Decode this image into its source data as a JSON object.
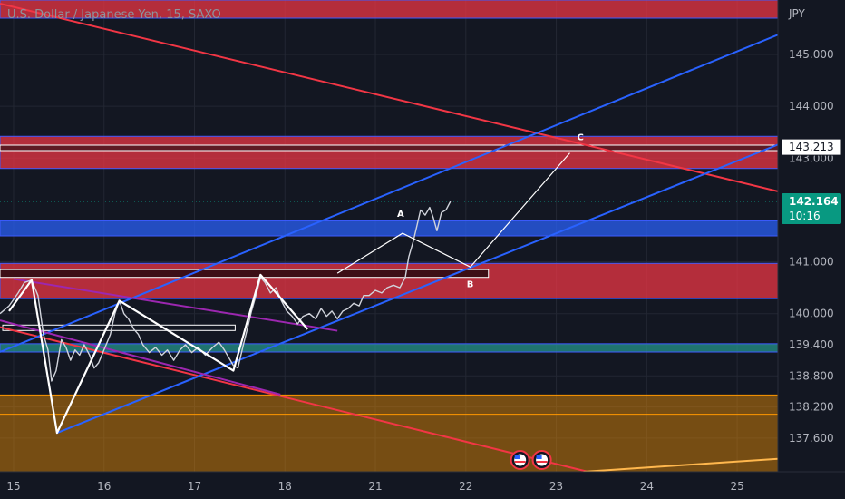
{
  "header": {
    "symbol": "U.S. Dollar / Japanese Yen",
    "interval": "15",
    "exchange": "SAXO",
    "currency": "JPY"
  },
  "chart_data": {
    "type": "line",
    "title": "U.S. Dollar / Japanese Yen, 15, SAXO",
    "x_ticks": [
      "15",
      "16",
      "17",
      "18",
      "21",
      "22",
      "23",
      "24",
      "25"
    ],
    "x_tick_index": [
      0,
      1,
      2,
      3,
      4,
      5,
      6,
      7,
      8
    ],
    "y_ticks": [
      145.0,
      144.0,
      143.0,
      141.0,
      140.0,
      139.4,
      138.8,
      138.2,
      137.6
    ],
    "y_tick_labels": [
      "145.000",
      "144.000",
      "143.000",
      "141.000",
      "140.000",
      "139.400",
      "138.800",
      "138.200",
      "137.600"
    ],
    "ylim": [
      136.95,
      146.05
    ],
    "xlim": [
      -0.15,
      8.45
    ],
    "grid": true,
    "last_price": {
      "value": 142.164,
      "label": "142.164",
      "countdown": "10:16",
      "color": "#089981"
    },
    "marked_level": {
      "value": 143.213,
      "label": "143.213"
    },
    "price": [
      [
        -0.15,
        140.0
      ],
      [
        -0.05,
        140.15
      ],
      [
        0.05,
        140.4
      ],
      [
        0.12,
        140.6
      ],
      [
        0.2,
        140.65
      ],
      [
        0.27,
        140.35
      ],
      [
        0.33,
        139.6
      ],
      [
        0.38,
        139.3
      ],
      [
        0.42,
        138.7
      ],
      [
        0.47,
        138.9
      ],
      [
        0.53,
        139.5
      ],
      [
        0.58,
        139.35
      ],
      [
        0.63,
        139.1
      ],
      [
        0.68,
        139.3
      ],
      [
        0.73,
        139.2
      ],
      [
        0.78,
        139.4
      ],
      [
        0.84,
        139.2
      ],
      [
        0.89,
        138.95
      ],
      [
        0.94,
        139.05
      ],
      [
        1.0,
        139.3
      ],
      [
        1.07,
        139.6
      ],
      [
        1.12,
        140.0
      ],
      [
        1.17,
        140.25
      ],
      [
        1.22,
        140.0
      ],
      [
        1.27,
        139.9
      ],
      [
        1.33,
        139.7
      ],
      [
        1.38,
        139.6
      ],
      [
        1.43,
        139.4
      ],
      [
        1.5,
        139.25
      ],
      [
        1.57,
        139.35
      ],
      [
        1.64,
        139.2
      ],
      [
        1.7,
        139.3
      ],
      [
        1.77,
        139.1
      ],
      [
        1.84,
        139.3
      ],
      [
        1.9,
        139.4
      ],
      [
        1.97,
        139.25
      ],
      [
        2.04,
        139.35
      ],
      [
        2.12,
        139.2
      ],
      [
        2.2,
        139.35
      ],
      [
        2.27,
        139.45
      ],
      [
        2.33,
        139.3
      ],
      [
        2.38,
        139.15
      ],
      [
        2.43,
        139.0
      ],
      [
        2.48,
        138.95
      ],
      [
        2.54,
        139.4
      ],
      [
        2.59,
        139.75
      ],
      [
        2.63,
        140.05
      ],
      [
        2.68,
        140.35
      ],
      [
        2.73,
        140.7
      ],
      [
        2.78,
        140.6
      ],
      [
        2.84,
        140.4
      ],
      [
        2.9,
        140.5
      ],
      [
        2.96,
        140.25
      ],
      [
        3.02,
        140.05
      ],
      [
        3.08,
        139.95
      ],
      [
        3.14,
        139.8
      ],
      [
        3.2,
        139.95
      ],
      [
        3.27,
        140.0
      ],
      [
        3.34,
        139.9
      ],
      [
        3.4,
        140.1
      ],
      [
        3.46,
        139.95
      ],
      [
        3.52,
        140.05
      ],
      [
        3.58,
        139.9
      ],
      [
        3.64,
        140.05
      ],
      [
        3.7,
        140.1
      ],
      [
        3.76,
        140.2
      ],
      [
        3.82,
        140.15
      ],
      [
        3.87,
        140.35
      ],
      [
        3.93,
        140.35
      ],
      [
        4.0,
        140.45
      ],
      [
        4.07,
        140.4
      ],
      [
        4.13,
        140.5
      ],
      [
        4.2,
        140.55
      ],
      [
        4.27,
        140.5
      ],
      [
        4.33,
        140.7
      ],
      [
        4.37,
        141.1
      ],
      [
        4.42,
        141.4
      ],
      [
        4.46,
        141.7
      ],
      [
        4.5,
        142.0
      ],
      [
        4.55,
        141.9
      ],
      [
        4.6,
        142.05
      ],
      [
        4.64,
        141.85
      ],
      [
        4.68,
        141.6
      ],
      [
        4.73,
        141.95
      ],
      [
        4.78,
        142.0
      ],
      [
        4.83,
        142.164
      ]
    ],
    "zones": [
      {
        "name": "supply-zone-top",
        "y_from": 145.7,
        "y_to": 146.05,
        "color": "#f23645"
      },
      {
        "name": "supply-zone-143",
        "y_from": 142.8,
        "y_to": 143.42,
        "color": "#f23645"
      },
      {
        "name": "demand-zone-141",
        "y_from": 141.5,
        "y_to": 141.79,
        "color": "#2962ff"
      },
      {
        "name": "supply-zone-140",
        "y_from": 140.29,
        "y_to": 140.97,
        "color": "#f23645"
      },
      {
        "name": "demand-zone-139",
        "y_from": 139.26,
        "y_to": 139.42,
        "color": "#26a69a"
      },
      {
        "name": "orange-zone-138",
        "y_from": 136.95,
        "y_to": 138.43,
        "color": "#ff9800"
      }
    ],
    "trendlines": [
      {
        "name": "red-downtrend-line",
        "color": "#f23645",
        "points": [
          [
            -0.15,
            145.98
          ],
          [
            8.45,
            142.36
          ]
        ]
      },
      {
        "name": "red-lower-trendline",
        "color": "#f23645",
        "points": [
          [
            -0.15,
            139.74
          ],
          [
            6.35,
            136.95
          ]
        ]
      },
      {
        "name": "blue-channel-upper",
        "color": "#2962ff",
        "points": [
          [
            -0.15,
            139.26
          ],
          [
            8.45,
            145.38
          ]
        ]
      },
      {
        "name": "blue-channel-lower",
        "color": "#2962ff",
        "points": [
          [
            0.48,
            137.7
          ],
          [
            8.45,
            143.26
          ]
        ]
      },
      {
        "name": "purple-trendline-upper",
        "color": "#9c27b0",
        "points": [
          [
            0.0,
            140.67
          ],
          [
            3.58,
            139.67
          ]
        ]
      },
      {
        "name": "purple-trendline-lower",
        "color": "#9c27b0",
        "points": [
          [
            -0.15,
            139.87
          ],
          [
            2.95,
            138.44
          ]
        ]
      },
      {
        "name": "orange-lower-line",
        "color": "#ffb74d",
        "points": [
          [
            6.3,
            136.95
          ],
          [
            8.45,
            137.2
          ]
        ]
      }
    ],
    "level_lines": [
      {
        "name": "orange-level-upper",
        "y": 138.43,
        "color": "#ff9800"
      },
      {
        "name": "orange-level-lower",
        "y": 138.06,
        "color": "#ff9800"
      }
    ],
    "rectangles": [
      {
        "name": "white-box-143",
        "x_from": -0.15,
        "x_to": 8.45,
        "y_from": 143.17,
        "y_to": 143.25,
        "fill": "#5e1a24",
        "stroke": "#ffffff"
      },
      {
        "name": "white-box-141",
        "x_from": -0.15,
        "x_to": 5.25,
        "y_from": 140.7,
        "y_to": 140.85,
        "fill": "#3d0f16",
        "stroke": "#ffffff"
      },
      {
        "name": "white-box-139",
        "x_from": -0.12,
        "x_to": 2.45,
        "y_from": 139.71,
        "y_to": 139.78,
        "fill": "#131722",
        "stroke": "#ffffff"
      }
    ],
    "zigzag": [
      [
        -0.05,
        140.05
      ],
      [
        0.2,
        140.65
      ],
      [
        0.48,
        137.7
      ],
      [
        1.17,
        140.25
      ],
      [
        2.43,
        138.9
      ],
      [
        2.73,
        140.75
      ],
      [
        3.25,
        139.7
      ]
    ],
    "projection": {
      "points": [
        [
          3.58,
          140.78
        ],
        [
          4.3,
          141.55
        ],
        [
          5.05,
          140.9
        ],
        [
          6.15,
          143.1
        ]
      ],
      "labels": [
        "A",
        "B",
        "C"
      ]
    },
    "events": [
      {
        "name": "us-flag-1",
        "x": 5.6
      },
      {
        "name": "us-flag-2",
        "x": 5.84
      }
    ]
  }
}
